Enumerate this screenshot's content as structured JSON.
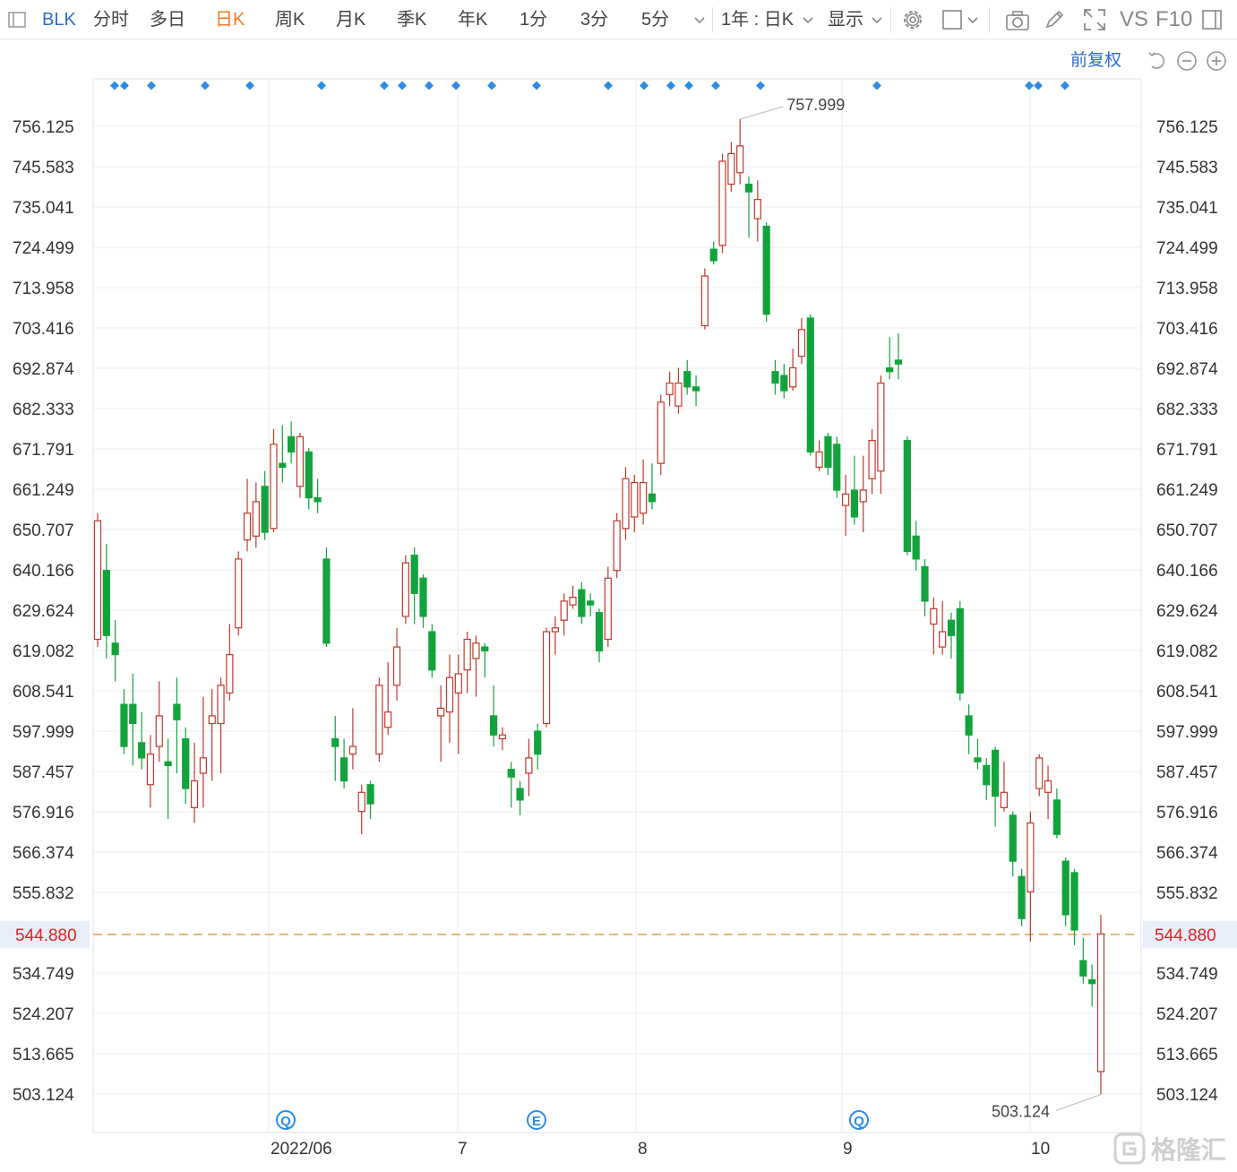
{
  "toolbar": {
    "symbol": "BLK",
    "periods": [
      "分时",
      "多日",
      "日K",
      "周K",
      "月K",
      "季K",
      "年K",
      "1分",
      "3分",
      "5分"
    ],
    "active_period": "日K",
    "range_select": "1年 : 日K",
    "display_label": "显示",
    "vs_label": "VS",
    "f10_label": "F10"
  },
  "adjust_label": "前复权",
  "watermark_text": "格隆汇",
  "colors": {
    "up": "#c0392b",
    "down": "#12a33c",
    "grid": "#ececec",
    "dash": "#f0a040",
    "current_price": "#e02020",
    "marker": "#2a8ce8",
    "active_tab": "#f47a20",
    "symbol": "#2b6cd4"
  },
  "chart_data": {
    "type": "candlestick",
    "y_ticks": [
      "756.125",
      "745.583",
      "735.041",
      "724.499",
      "713.958",
      "703.416",
      "692.874",
      "682.333",
      "671.791",
      "661.249",
      "650.707",
      "640.166",
      "629.624",
      "619.082",
      "608.541",
      "597.999",
      "587.457",
      "576.916",
      "566.374",
      "555.832",
      "534.749",
      "524.207",
      "513.665",
      "503.124"
    ],
    "ylim": [
      503.124,
      756.125
    ],
    "x_ticks": [
      "2022/06",
      "7",
      "8",
      "9",
      "10"
    ],
    "current_price": "544.880",
    "max_label": "757.999",
    "min_label": "503.124",
    "event_markers": [
      "Q",
      "E",
      "Q"
    ],
    "candles": [
      {
        "o": 622,
        "c": 653,
        "h": 655,
        "l": 620
      },
      {
        "o": 640,
        "c": 623,
        "h": 647,
        "l": 617
      },
      {
        "o": 621,
        "c": 618,
        "h": 627,
        "l": 611
      },
      {
        "o": 605,
        "c": 594,
        "h": 609,
        "l": 592
      },
      {
        "o": 605,
        "c": 600,
        "h": 613,
        "l": 589
      },
      {
        "o": 595,
        "c": 591,
        "h": 603,
        "l": 588
      },
      {
        "o": 584,
        "c": 592,
        "h": 597,
        "l": 578
      },
      {
        "o": 594,
        "c": 602,
        "h": 611,
        "l": 590
      },
      {
        "o": 590,
        "c": 589,
        "h": 596,
        "l": 575
      },
      {
        "o": 605,
        "c": 601,
        "h": 612,
        "l": 587
      },
      {
        "o": 596,
        "c": 583,
        "h": 599,
        "l": 579
      },
      {
        "o": 578,
        "c": 585,
        "h": 595,
        "l": 574
      },
      {
        "o": 587,
        "c": 591,
        "h": 607,
        "l": 578
      },
      {
        "o": 600,
        "c": 602,
        "h": 609,
        "l": 585
      },
      {
        "o": 600,
        "c": 610,
        "h": 612,
        "l": 587
      },
      {
        "o": 608,
        "c": 618,
        "h": 626,
        "l": 606
      },
      {
        "o": 625,
        "c": 643,
        "h": 645,
        "l": 623
      },
      {
        "o": 648,
        "c": 655,
        "h": 664,
        "l": 645
      },
      {
        "o": 649,
        "c": 658,
        "h": 663,
        "l": 646
      },
      {
        "o": 662,
        "c": 650,
        "h": 666,
        "l": 648
      },
      {
        "o": 651,
        "c": 673,
        "h": 677,
        "l": 650
      },
      {
        "o": 668,
        "c": 667,
        "h": 678,
        "l": 663
      },
      {
        "o": 675,
        "c": 671,
        "h": 679,
        "l": 668
      },
      {
        "o": 662,
        "c": 675,
        "h": 676,
        "l": 659
      },
      {
        "o": 671,
        "c": 659,
        "h": 672,
        "l": 656
      },
      {
        "o": 659,
        "c": 658,
        "h": 664,
        "l": 655
      },
      {
        "o": 643,
        "c": 621,
        "h": 646,
        "l": 620
      },
      {
        "o": 596,
        "c": 594,
        "h": 602,
        "l": 585
      },
      {
        "o": 591,
        "c": 585,
        "h": 596,
        "l": 583
      },
      {
        "o": 592,
        "c": 594,
        "h": 604,
        "l": 588
      },
      {
        "o": 577,
        "c": 582,
        "h": 584,
        "l": 571
      },
      {
        "o": 584,
        "c": 579,
        "h": 585,
        "l": 575
      },
      {
        "o": 592,
        "c": 610,
        "h": 612,
        "l": 590
      },
      {
        "o": 599,
        "c": 603,
        "h": 616,
        "l": 597
      },
      {
        "o": 610,
        "c": 620,
        "h": 625,
        "l": 606
      },
      {
        "o": 628,
        "c": 642,
        "h": 644,
        "l": 626
      },
      {
        "o": 644,
        "c": 634,
        "h": 646,
        "l": 626
      },
      {
        "o": 638,
        "c": 628,
        "h": 639,
        "l": 625
      },
      {
        "o": 624,
        "c": 614,
        "h": 626,
        "l": 612
      },
      {
        "o": 602,
        "c": 604,
        "h": 610,
        "l": 590
      },
      {
        "o": 603,
        "c": 612,
        "h": 618,
        "l": 595
      },
      {
        "o": 608,
        "c": 613,
        "h": 618,
        "l": 592
      },
      {
        "o": 614,
        "c": 622,
        "h": 624,
        "l": 608
      },
      {
        "o": 617,
        "c": 621,
        "h": 623,
        "l": 607
      },
      {
        "o": 620,
        "c": 619,
        "h": 621,
        "l": 612
      },
      {
        "o": 602,
        "c": 597,
        "h": 610,
        "l": 594
      },
      {
        "o": 596,
        "c": 597,
        "h": 599,
        "l": 593
      },
      {
        "o": 588,
        "c": 586,
        "h": 590,
        "l": 578
      },
      {
        "o": 583,
        "c": 580,
        "h": 585,
        "l": 576
      },
      {
        "o": 587,
        "c": 591,
        "h": 596,
        "l": 581
      },
      {
        "o": 598,
        "c": 592,
        "h": 600,
        "l": 588
      },
      {
        "o": 600,
        "c": 624,
        "h": 625,
        "l": 599
      },
      {
        "o": 624,
        "c": 625,
        "h": 628,
        "l": 618
      },
      {
        "o": 627,
        "c": 632,
        "h": 634,
        "l": 623
      },
      {
        "o": 631,
        "c": 633,
        "h": 636,
        "l": 630
      },
      {
        "o": 635,
        "c": 628,
        "h": 637,
        "l": 626
      },
      {
        "o": 632,
        "c": 631,
        "h": 634,
        "l": 628
      },
      {
        "o": 629,
        "c": 619,
        "h": 630,
        "l": 616
      },
      {
        "o": 622,
        "c": 638,
        "h": 641,
        "l": 620
      },
      {
        "o": 640,
        "c": 653,
        "h": 655,
        "l": 638
      },
      {
        "o": 651,
        "c": 664,
        "h": 667,
        "l": 648
      },
      {
        "o": 654,
        "c": 663,
        "h": 665,
        "l": 650
      },
      {
        "o": 655,
        "c": 663,
        "h": 669,
        "l": 652
      },
      {
        "o": 660,
        "c": 658,
        "h": 668,
        "l": 656
      },
      {
        "o": 668,
        "c": 684,
        "h": 686,
        "l": 665
      },
      {
        "o": 686,
        "c": 689,
        "h": 692,
        "l": 683
      },
      {
        "o": 683,
        "c": 689,
        "h": 693,
        "l": 681
      },
      {
        "o": 692,
        "c": 688,
        "h": 695,
        "l": 686
      },
      {
        "o": 688,
        "c": 687,
        "h": 691,
        "l": 683
      },
      {
        "o": 704,
        "c": 717,
        "h": 719,
        "l": 703
      },
      {
        "o": 724,
        "c": 721,
        "h": 726,
        "l": 720
      },
      {
        "o": 725,
        "c": 747,
        "h": 749,
        "l": 723
      },
      {
        "o": 741,
        "c": 749,
        "h": 752,
        "l": 739
      },
      {
        "o": 744,
        "c": 751,
        "h": 758,
        "l": 741
      },
      {
        "o": 741,
        "c": 739,
        "h": 743,
        "l": 727
      },
      {
        "o": 732,
        "c": 737,
        "h": 742,
        "l": 726
      },
      {
        "o": 730,
        "c": 707,
        "h": 731,
        "l": 705
      },
      {
        "o": 692,
        "c": 689,
        "h": 695,
        "l": 686
      },
      {
        "o": 691,
        "c": 687,
        "h": 694,
        "l": 685
      },
      {
        "o": 688,
        "c": 693,
        "h": 698,
        "l": 687
      },
      {
        "o": 696,
        "c": 703,
        "h": 706,
        "l": 694
      },
      {
        "o": 706,
        "c": 671,
        "h": 707,
        "l": 670
      },
      {
        "o": 667,
        "c": 671,
        "h": 674,
        "l": 666
      },
      {
        "o": 675,
        "c": 667,
        "h": 676,
        "l": 665
      },
      {
        "o": 673,
        "c": 661,
        "h": 675,
        "l": 659
      },
      {
        "o": 657,
        "c": 660,
        "h": 665,
        "l": 649
      },
      {
        "o": 661,
        "c": 654,
        "h": 670,
        "l": 652
      },
      {
        "o": 658,
        "c": 661,
        "h": 670,
        "l": 650
      },
      {
        "o": 664,
        "c": 674,
        "h": 677,
        "l": 660
      },
      {
        "o": 666,
        "c": 689,
        "h": 691,
        "l": 660
      },
      {
        "o": 693,
        "c": 692,
        "h": 701,
        "l": 690
      },
      {
        "o": 695,
        "c": 694,
        "h": 702,
        "l": 690
      },
      {
        "o": 674,
        "c": 645,
        "h": 675,
        "l": 644
      },
      {
        "o": 649,
        "c": 643,
        "h": 653,
        "l": 640
      },
      {
        "o": 641,
        "c": 632,
        "h": 643,
        "l": 628
      },
      {
        "o": 626,
        "c": 630,
        "h": 633,
        "l": 618
      },
      {
        "o": 620,
        "c": 624,
        "h": 632,
        "l": 618
      },
      {
        "o": 627,
        "c": 623,
        "h": 629,
        "l": 617
      },
      {
        "o": 630,
        "c": 608,
        "h": 632,
        "l": 606
      },
      {
        "o": 602,
        "c": 597,
        "h": 605,
        "l": 592
      },
      {
        "o": 591,
        "c": 590,
        "h": 596,
        "l": 588
      },
      {
        "o": 589,
        "c": 584,
        "h": 591,
        "l": 580
      },
      {
        "o": 593,
        "c": 581,
        "h": 594,
        "l": 573
      },
      {
        "o": 578,
        "c": 582,
        "h": 590,
        "l": 577
      },
      {
        "o": 576,
        "c": 564,
        "h": 577,
        "l": 560
      },
      {
        "o": 560,
        "c": 549,
        "h": 562,
        "l": 547
      },
      {
        "o": 556,
        "c": 574,
        "h": 577,
        "l": 543
      },
      {
        "o": 583,
        "c": 591,
        "h": 592,
        "l": 581
      },
      {
        "o": 582,
        "c": 585,
        "h": 589,
        "l": 575
      },
      {
        "o": 580,
        "c": 571,
        "h": 583,
        "l": 570
      },
      {
        "o": 564,
        "c": 550,
        "h": 565,
        "l": 547
      },
      {
        "o": 561,
        "c": 546,
        "h": 562,
        "l": 542
      },
      {
        "o": 538,
        "c": 534,
        "h": 544,
        "l": 532
      },
      {
        "o": 533,
        "c": 532,
        "h": 537,
        "l": 526
      },
      {
        "o": 509,
        "c": 545,
        "h": 550,
        "l": 503
      }
    ]
  }
}
